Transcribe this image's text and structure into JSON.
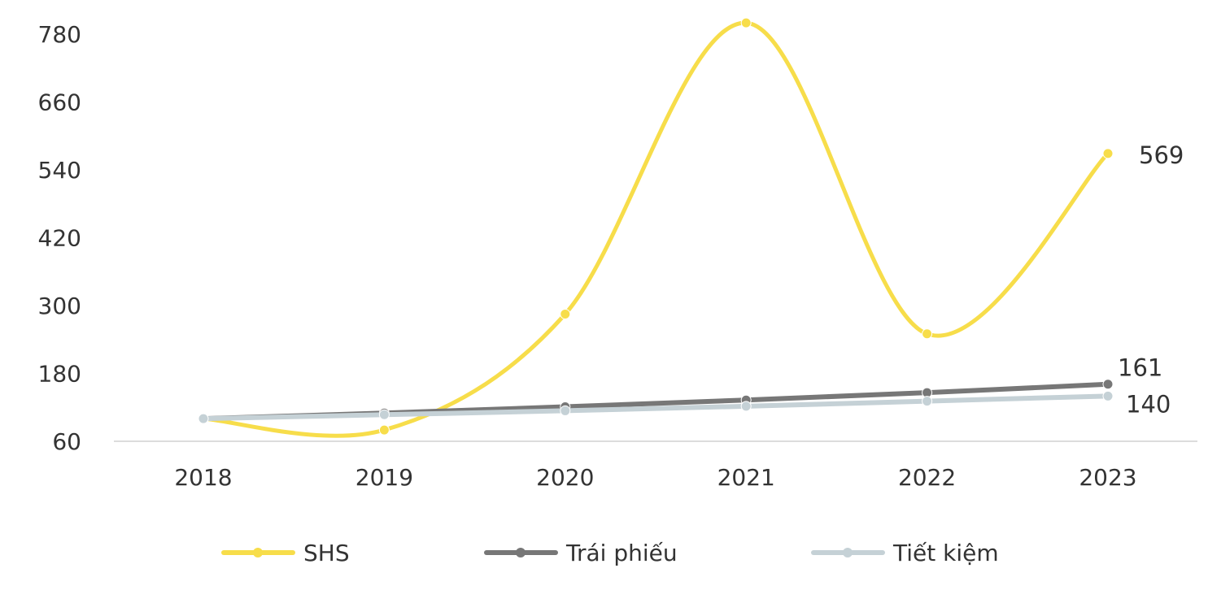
{
  "chart_data": {
    "type": "line",
    "categories": [
      "2018",
      "2019",
      "2020",
      "2021",
      "2022",
      "2023"
    ],
    "series": [
      {
        "name": "SHS",
        "values": [
          100,
          80,
          285,
          800,
          250,
          569
        ],
        "color": "#F7DD4A",
        "end_label": "569"
      },
      {
        "name": "Trái phiếu",
        "values": [
          100,
          110,
          121,
          133,
          146,
          161
        ],
        "color": "#777777",
        "end_label": "161"
      },
      {
        "name": "Tiết kiệm",
        "values": [
          100,
          107,
          114,
          122,
          131,
          140
        ],
        "color": "#C5D1D6",
        "end_label": "140"
      }
    ],
    "yticks": [
      60,
      180,
      300,
      420,
      540,
      660,
      780
    ],
    "ylim": [
      60,
      800
    ],
    "grid": false,
    "smooth": true,
    "legend_position": "bottom",
    "title": "",
    "xlabel": "",
    "ylabel": ""
  }
}
